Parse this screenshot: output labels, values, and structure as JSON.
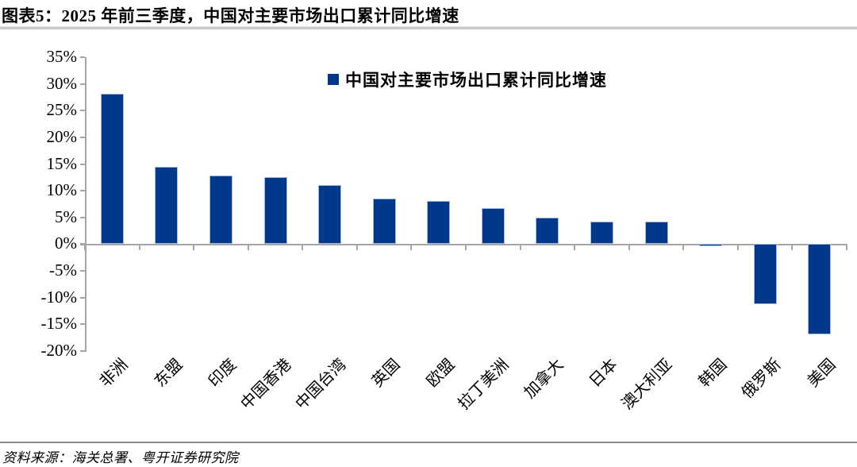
{
  "title": "图表5：2025 年前三季度，中国对主要市场出口累计同比增速",
  "legend": {
    "label": "中国对主要市场出口累计同比增速",
    "swatch_color": "#00398C"
  },
  "source": "资料来源：海关总署、粤开证券研究院",
  "colors": {
    "bar": "#00398C",
    "bar_border": "#a9bade",
    "axis": "#a6a6a6"
  },
  "chart_data": {
    "type": "bar",
    "title": "中国对主要市场出口累计同比增速",
    "categories": [
      "非洲",
      "东盟",
      "印度",
      "中国香港",
      "中国台湾",
      "英国",
      "欧盟",
      "拉丁美洲",
      "加拿大",
      "日本",
      "澳大利亚",
      "韩国",
      "俄罗斯",
      "美国"
    ],
    "values": [
      28.2,
      14.5,
      12.8,
      12.5,
      11.0,
      8.5,
      8.1,
      6.7,
      4.9,
      4.3,
      4.2,
      -0.4,
      -11.2,
      -16.9
    ],
    "unit": "%",
    "ylim": [
      -20,
      35
    ],
    "ytick_step": 5,
    "ytick_labels": [
      "35%",
      "30%",
      "25%",
      "20%",
      "15%",
      "10%",
      "5%",
      "0%",
      "-5%",
      "-10%",
      "-15%",
      "-20%"
    ],
    "grid": false,
    "legend_position": "top-center"
  }
}
